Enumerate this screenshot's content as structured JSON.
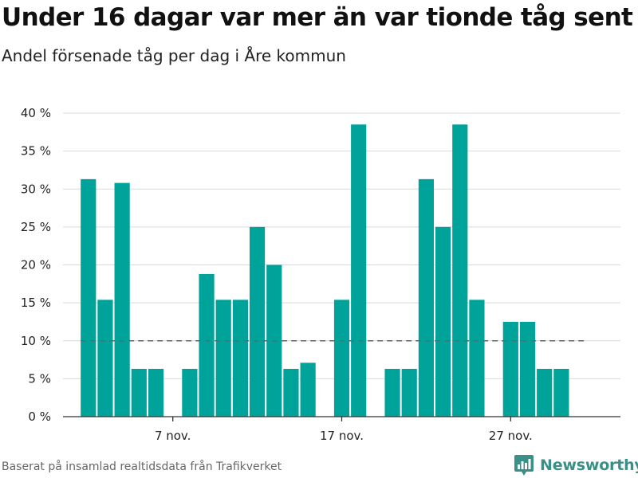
{
  "header": {
    "title": "Under 16 dagar var mer än var tionde tåg sent",
    "subtitle": "Andel försenade tåg per dag i Åre kommun"
  },
  "footer": {
    "source": "Baserat på insamlad realtidsdata från Trafikverket",
    "brand": "Newsworthy"
  },
  "colors": {
    "bar": "#00a39a",
    "reference_line": "#666666",
    "grid": "#d9d9d9",
    "brand": "#3a8f86"
  },
  "chart_data": {
    "type": "bar",
    "title": "Under 16 dagar var mer än var tionde tåg sent",
    "subtitle": "Andel försenade tåg per dag i Åre kommun",
    "xlabel": "",
    "ylabel": "",
    "ylim": [
      0,
      40
    ],
    "yticks": [
      0,
      5,
      10,
      15,
      20,
      25,
      30,
      35,
      40
    ],
    "ytick_labels": [
      "0 %",
      "5 %",
      "10 %",
      "15 %",
      "20 %",
      "25 %",
      "30 %",
      "35 %",
      "40 %"
    ],
    "x_start_day": 1,
    "x_range": [
      -0.5,
      32.5
    ],
    "xticks": [
      7,
      17,
      27
    ],
    "xtick_labels": [
      "7 nov.",
      "17 nov.",
      "27 nov."
    ],
    "days": [
      2,
      3,
      4,
      5,
      6,
      8,
      9,
      10,
      11,
      12,
      13,
      14,
      15,
      17,
      18,
      20,
      21,
      22,
      23,
      24,
      25,
      27,
      28,
      29,
      30
    ],
    "values": [
      31.3,
      15.4,
      30.8,
      6.3,
      6.3,
      6.3,
      18.8,
      15.4,
      15.4,
      25.0,
      20.0,
      6.3,
      7.1,
      15.4,
      38.5,
      6.3,
      6.3,
      31.3,
      25.0,
      38.5,
      15.4,
      12.5,
      12.5,
      6.3,
      6.3
    ],
    "reference_line": {
      "value": 10,
      "from_day": 2,
      "to_day": 31,
      "style": "dashed"
    },
    "grid": true,
    "legend": "none"
  }
}
